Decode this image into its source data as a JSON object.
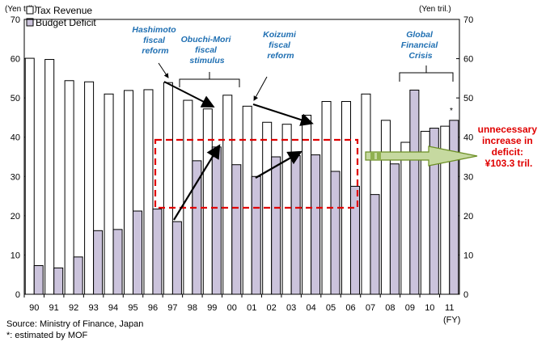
{
  "chart_data": {
    "type": "bar",
    "categories": [
      "90",
      "91",
      "92",
      "93",
      "94",
      "95",
      "96",
      "97",
      "98",
      "99",
      "00",
      "01",
      "02",
      "03",
      "04",
      "05",
      "06",
      "07",
      "08",
      "09",
      "10",
      "11"
    ],
    "series": [
      {
        "name": "Tax Revenue",
        "values": [
          60.1,
          59.8,
          54.4,
          54.1,
          51.0,
          51.9,
          52.1,
          53.9,
          49.4,
          47.2,
          50.7,
          47.9,
          43.8,
          43.3,
          45.6,
          49.1,
          49.1,
          51.0,
          44.3,
          38.7,
          41.5,
          42.8
        ]
      },
      {
        "name": "Budget Deficit",
        "values": [
          7.3,
          6.7,
          9.5,
          16.2,
          16.5,
          21.2,
          21.7,
          18.5,
          34.0,
          37.5,
          33.0,
          30.0,
          35.0,
          35.3,
          35.5,
          31.3,
          27.5,
          25.4,
          33.2,
          52.0,
          42.3,
          44.3
        ]
      }
    ],
    "ylabel_left": "(Yen tril.)",
    "ylabel_right": "(Yen tril.)",
    "xlabel": "(FY)",
    "ylim": [
      0,
      70
    ],
    "yticks": [
      0,
      10,
      20,
      30,
      40,
      50,
      60,
      70
    ],
    "estimated_marker": "*",
    "annotations": [
      {
        "text": [
          "Hashimoto",
          "fiscal",
          "reform"
        ]
      },
      {
        "text": [
          "Obuchi-Mori",
          "fiscal",
          "stimulus"
        ]
      },
      {
        "text": [
          "Koizumi",
          "fiscal",
          "reform"
        ]
      },
      {
        "text": [
          "Global",
          "Financial",
          "Crisis"
        ]
      }
    ],
    "deficit_note": [
      "unnecessary",
      "increase in",
      "deficit:",
      "¥103.3 tril."
    ]
  },
  "source_text": "Source: Ministry of Finance, Japan",
  "estimate_note": "*: estimated by MOF",
  "colors": {
    "tax_fill": "#ffffff",
    "deficit_fill": "#cbc3dc",
    "annotation": "#1f6fb2",
    "highlight": "#e00000",
    "arrow_fill": "#c6d9a0",
    "arrow_stroke": "#6b8e23"
  }
}
